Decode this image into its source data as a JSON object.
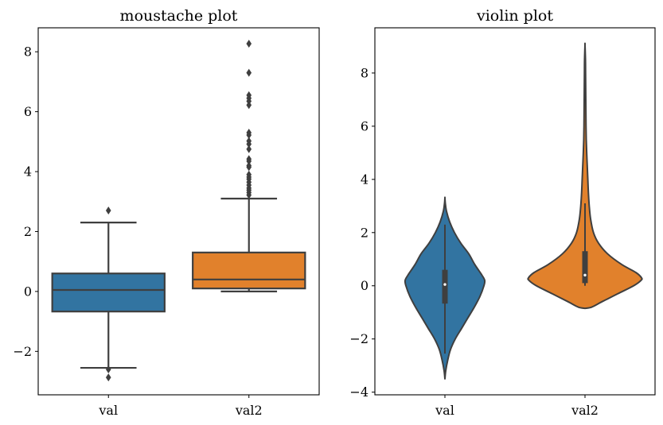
{
  "chart_data": [
    {
      "type": "box",
      "title": "moustache plot",
      "xlabel": "",
      "ylabel": "",
      "ylim": [
        -3.45,
        8.8
      ],
      "yticks": [
        -2,
        0,
        2,
        4,
        6,
        8
      ],
      "ytick_labels": [
        "−2",
        "0",
        "2",
        "4",
        "6",
        "8"
      ],
      "categories": [
        "val",
        "val2"
      ],
      "series": [
        {
          "name": "val",
          "color": "#3274a1",
          "q1": -0.67,
          "median": 0.05,
          "q3": 0.6,
          "whisker_low": -2.55,
          "whisker_high": 2.3,
          "outliers": [
            2.7,
            -2.6,
            -2.87
          ]
        },
        {
          "name": "val2",
          "color": "#e1812c",
          "q1": 0.1,
          "median": 0.4,
          "q3": 1.3,
          "whisker_low": 0.0,
          "whisker_high": 3.1,
          "outliers": [
            8.27,
            7.3,
            6.55,
            6.45,
            6.35,
            6.22,
            5.3,
            5.22,
            5.02,
            4.92,
            4.75,
            4.42,
            4.35,
            4.2,
            4.15,
            3.9,
            3.82,
            3.75,
            3.65,
            3.55,
            3.45,
            3.38,
            3.3,
            3.22
          ]
        }
      ]
    },
    {
      "type": "violin",
      "title": "violin plot",
      "xlabel": "",
      "ylabel": "",
      "ylim": [
        -4.1,
        9.7
      ],
      "yticks": [
        -4,
        -2,
        0,
        2,
        4,
        6,
        8
      ],
      "ytick_labels": [
        "−4",
        "−2",
        "0",
        "2",
        "4",
        "6",
        "8"
      ],
      "categories": [
        "val",
        "val2"
      ],
      "series": [
        {
          "name": "val",
          "color": "#3274a1",
          "q1": -0.67,
          "median": 0.05,
          "q3": 0.6,
          "whisker_low": -2.55,
          "whisker_high": 2.3,
          "density": [
            [
              -3.5,
              0.0
            ],
            [
              -3.2,
              0.02
            ],
            [
              -2.8,
              0.07
            ],
            [
              -2.4,
              0.14
            ],
            [
              -2.0,
              0.26
            ],
            [
              -1.6,
              0.42
            ],
            [
              -1.2,
              0.58
            ],
            [
              -0.8,
              0.74
            ],
            [
              -0.4,
              0.88
            ],
            [
              0.0,
              0.98
            ],
            [
              0.2,
              1.0
            ],
            [
              0.4,
              0.93
            ],
            [
              0.8,
              0.75
            ],
            [
              1.2,
              0.6
            ],
            [
              1.6,
              0.4
            ],
            [
              2.0,
              0.24
            ],
            [
              2.4,
              0.12
            ],
            [
              2.8,
              0.04
            ],
            [
              3.1,
              0.01
            ],
            [
              3.3,
              0.0
            ]
          ]
        },
        {
          "name": "val2",
          "color": "#e1812c",
          "q1": 0.1,
          "median": 0.4,
          "q3": 1.3,
          "whisker_low": 0.0,
          "whisker_high": 3.1,
          "density": [
            [
              -0.85,
              0.0
            ],
            [
              -0.8,
              0.12
            ],
            [
              -0.6,
              0.3
            ],
            [
              -0.3,
              0.58
            ],
            [
              0.0,
              0.86
            ],
            [
              0.2,
              0.99
            ],
            [
              0.3,
              1.0
            ],
            [
              0.5,
              0.9
            ],
            [
              0.8,
              0.65
            ],
            [
              1.2,
              0.4
            ],
            [
              1.6,
              0.24
            ],
            [
              2.0,
              0.15
            ],
            [
              2.5,
              0.1
            ],
            [
              3.0,
              0.075
            ],
            [
              3.5,
              0.06
            ],
            [
              4.0,
              0.05
            ],
            [
              4.5,
              0.04
            ],
            [
              5.0,
              0.03
            ],
            [
              5.5,
              0.022
            ],
            [
              6.0,
              0.018
            ],
            [
              6.5,
              0.016
            ],
            [
              7.0,
              0.014
            ],
            [
              7.5,
              0.012
            ],
            [
              8.0,
              0.01
            ],
            [
              8.5,
              0.008
            ],
            [
              9.05,
              0.0
            ]
          ]
        }
      ]
    }
  ]
}
